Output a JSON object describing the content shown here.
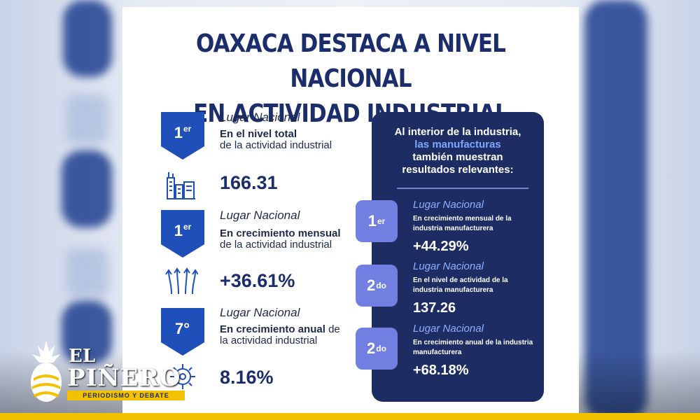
{
  "headline": {
    "line1": "OAXACA DESTACA A NIVEL NACIONAL",
    "line2": "EN ACTIVIDAD INDUSTRIAL"
  },
  "left_items": [
    {
      "rank": "1",
      "rank_suffix": "er",
      "title": "Lugar Nacional",
      "desc_bold": "En el nivel total",
      "desc_rest": "de la actividad industrial",
      "value": "166.31",
      "icon": "factory-icon"
    },
    {
      "rank": "1",
      "rank_suffix": "er",
      "title": "Lugar Nacional",
      "desc_bold": "En crecimiento mensual",
      "desc_rest": "de la actividad industrial",
      "value": "+36.61%",
      "icon": "arrows-up-icon"
    },
    {
      "rank": "7°",
      "rank_suffix": "",
      "title": "Lugar Nacional",
      "desc_bold": "En crecimiento anual",
      "desc_rest": "de la actividad industrial",
      "value": "8.16%",
      "icon": "gear-icon"
    }
  ],
  "panel": {
    "head_line1": "Al interior de la industria,",
    "head_highlight": "las manufacturas",
    "head_line3": "también muestran",
    "head_line4": "resultados relevantes:",
    "items": [
      {
        "rank": "1",
        "rank_suffix": "er",
        "title": "Lugar Nacional",
        "desc": "En crecimiento mensual de la industria manufacturera",
        "value": "+44.29%"
      },
      {
        "rank": "2",
        "rank_suffix": "do",
        "title": "Lugar Nacional",
        "desc": "En el nivel de actividad de la industria manufacturera",
        "value": "137.26"
      },
      {
        "rank": "2",
        "rank_suffix": "do",
        "title": "Lugar Nacional",
        "desc": "En crecimiento anual de la industria manufacturera",
        "value": "+68.18%"
      }
    ]
  },
  "logo": {
    "el": "EL",
    "name": "PIÑERO",
    "tagline": "PERIODISMO Y DEBATE"
  },
  "colors": {
    "navy": "#1d2d63",
    "badge_blue": "#1f4fb8",
    "panel_badge": "#7180e0",
    "highlight": "#7ea7ff",
    "brand_yellow": "#f2c200"
  }
}
